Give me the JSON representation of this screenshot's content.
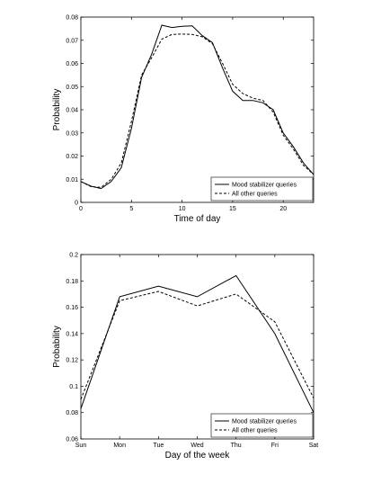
{
  "chart_data": [
    {
      "type": "line",
      "title": "",
      "xlabel": "Time of day",
      "ylabel": "Probability",
      "xlim": [
        0,
        23
      ],
      "ylim": [
        0,
        0.08
      ],
      "xticks": [
        0,
        5,
        10,
        15,
        20
      ],
      "xtick_labels": [
        "0",
        "5",
        "10",
        "15",
        "20"
      ],
      "yticks": [
        0,
        0.01,
        0.02,
        0.03,
        0.04,
        0.05,
        0.06,
        0.07,
        0.08
      ],
      "ytick_labels": [
        "0",
        "0.01",
        "0.02",
        "0.03",
        "0.04",
        "0.05",
        "0.06",
        "0.07",
        "0.08"
      ],
      "legend_position": "bottom-right",
      "grid": false,
      "x": [
        0,
        1,
        2,
        3,
        4,
        5,
        6,
        7,
        8,
        9,
        10,
        11,
        12,
        13,
        14,
        15,
        16,
        17,
        18,
        19,
        20,
        21,
        22,
        23
      ],
      "series": [
        {
          "name": "Mood stabilizer queries",
          "style": "solid",
          "color": "#000000",
          "values": [
            0.009,
            0.007,
            0.006,
            0.009,
            0.015,
            0.032,
            0.054,
            0.064,
            0.0765,
            0.0755,
            0.076,
            0.0762,
            0.072,
            0.069,
            0.058,
            0.048,
            0.044,
            0.044,
            0.043,
            0.04,
            0.03,
            0.024,
            0.017,
            0.012
          ]
        },
        {
          "name": "All other queries",
          "style": "dashed",
          "color": "#000000",
          "values": [
            0.009,
            0.0068,
            0.0065,
            0.01,
            0.017,
            0.035,
            0.055,
            0.0625,
            0.0705,
            0.0725,
            0.0727,
            0.0725,
            0.0715,
            0.0685,
            0.06,
            0.051,
            0.047,
            0.045,
            0.044,
            0.039,
            0.029,
            0.023,
            0.016,
            0.012
          ]
        }
      ]
    },
    {
      "type": "line",
      "title": "",
      "xlabel": "Day of the week",
      "ylabel": "Probability",
      "ylim": [
        0.06,
        0.2
      ],
      "categories": [
        "Sun",
        "Mon",
        "Tue",
        "Wed",
        "Thu",
        "Fri",
        "Sat"
      ],
      "yticks": [
        0.06,
        0.08,
        0.1,
        0.12,
        0.14,
        0.16,
        0.18,
        0.2
      ],
      "ytick_labels": [
        "0.06",
        "0.08",
        "0.1",
        "0.12",
        "0.14",
        "0.16",
        "0.18",
        "0.2"
      ],
      "legend_position": "bottom-right",
      "grid": false,
      "series": [
        {
          "name": "Mood stabilizer queries",
          "style": "solid",
          "color": "#000000",
          "values": [
            0.083,
            0.168,
            0.176,
            0.168,
            0.184,
            0.14,
            0.08
          ]
        },
        {
          "name": "All other queries",
          "style": "dashed",
          "color": "#000000",
          "values": [
            0.09,
            0.165,
            0.172,
            0.161,
            0.17,
            0.149,
            0.091
          ]
        }
      ]
    }
  ]
}
